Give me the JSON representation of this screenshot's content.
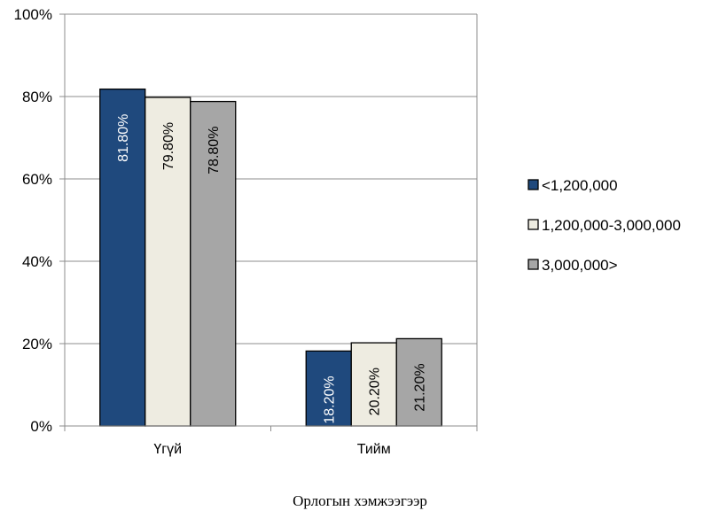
{
  "chart_data": {
    "type": "bar",
    "categories": [
      "Үгүй",
      "Тийм"
    ],
    "series": [
      {
        "name": "<1,200,000",
        "values": [
          81.8,
          18.2
        ],
        "color": "#1f497d",
        "label_color": "#ffffff"
      },
      {
        "name": "1,200,000-3,000,000",
        "values": [
          79.8,
          20.2
        ],
        "color": "#eeece1",
        "label_color": "#000000"
      },
      {
        "name": "3,000,000>",
        "values": [
          78.8,
          21.2
        ],
        "color": "#a6a6a6",
        "label_color": "#000000"
      }
    ],
    "data_labels": [
      [
        "81.80%",
        "18.20%"
      ],
      [
        "79.80%",
        "20.20%"
      ],
      [
        "78.80%",
        "21.20%"
      ]
    ],
    "yticks": [
      0,
      20,
      40,
      60,
      80,
      100
    ],
    "ytick_labels": [
      "0%",
      "20%",
      "40%",
      "60%",
      "80%",
      "100%"
    ],
    "ylim": [
      0,
      100
    ],
    "xlabel": "Орлогын хэмжээгээр",
    "ylabel": "",
    "grid": true,
    "legend_position": "right"
  }
}
